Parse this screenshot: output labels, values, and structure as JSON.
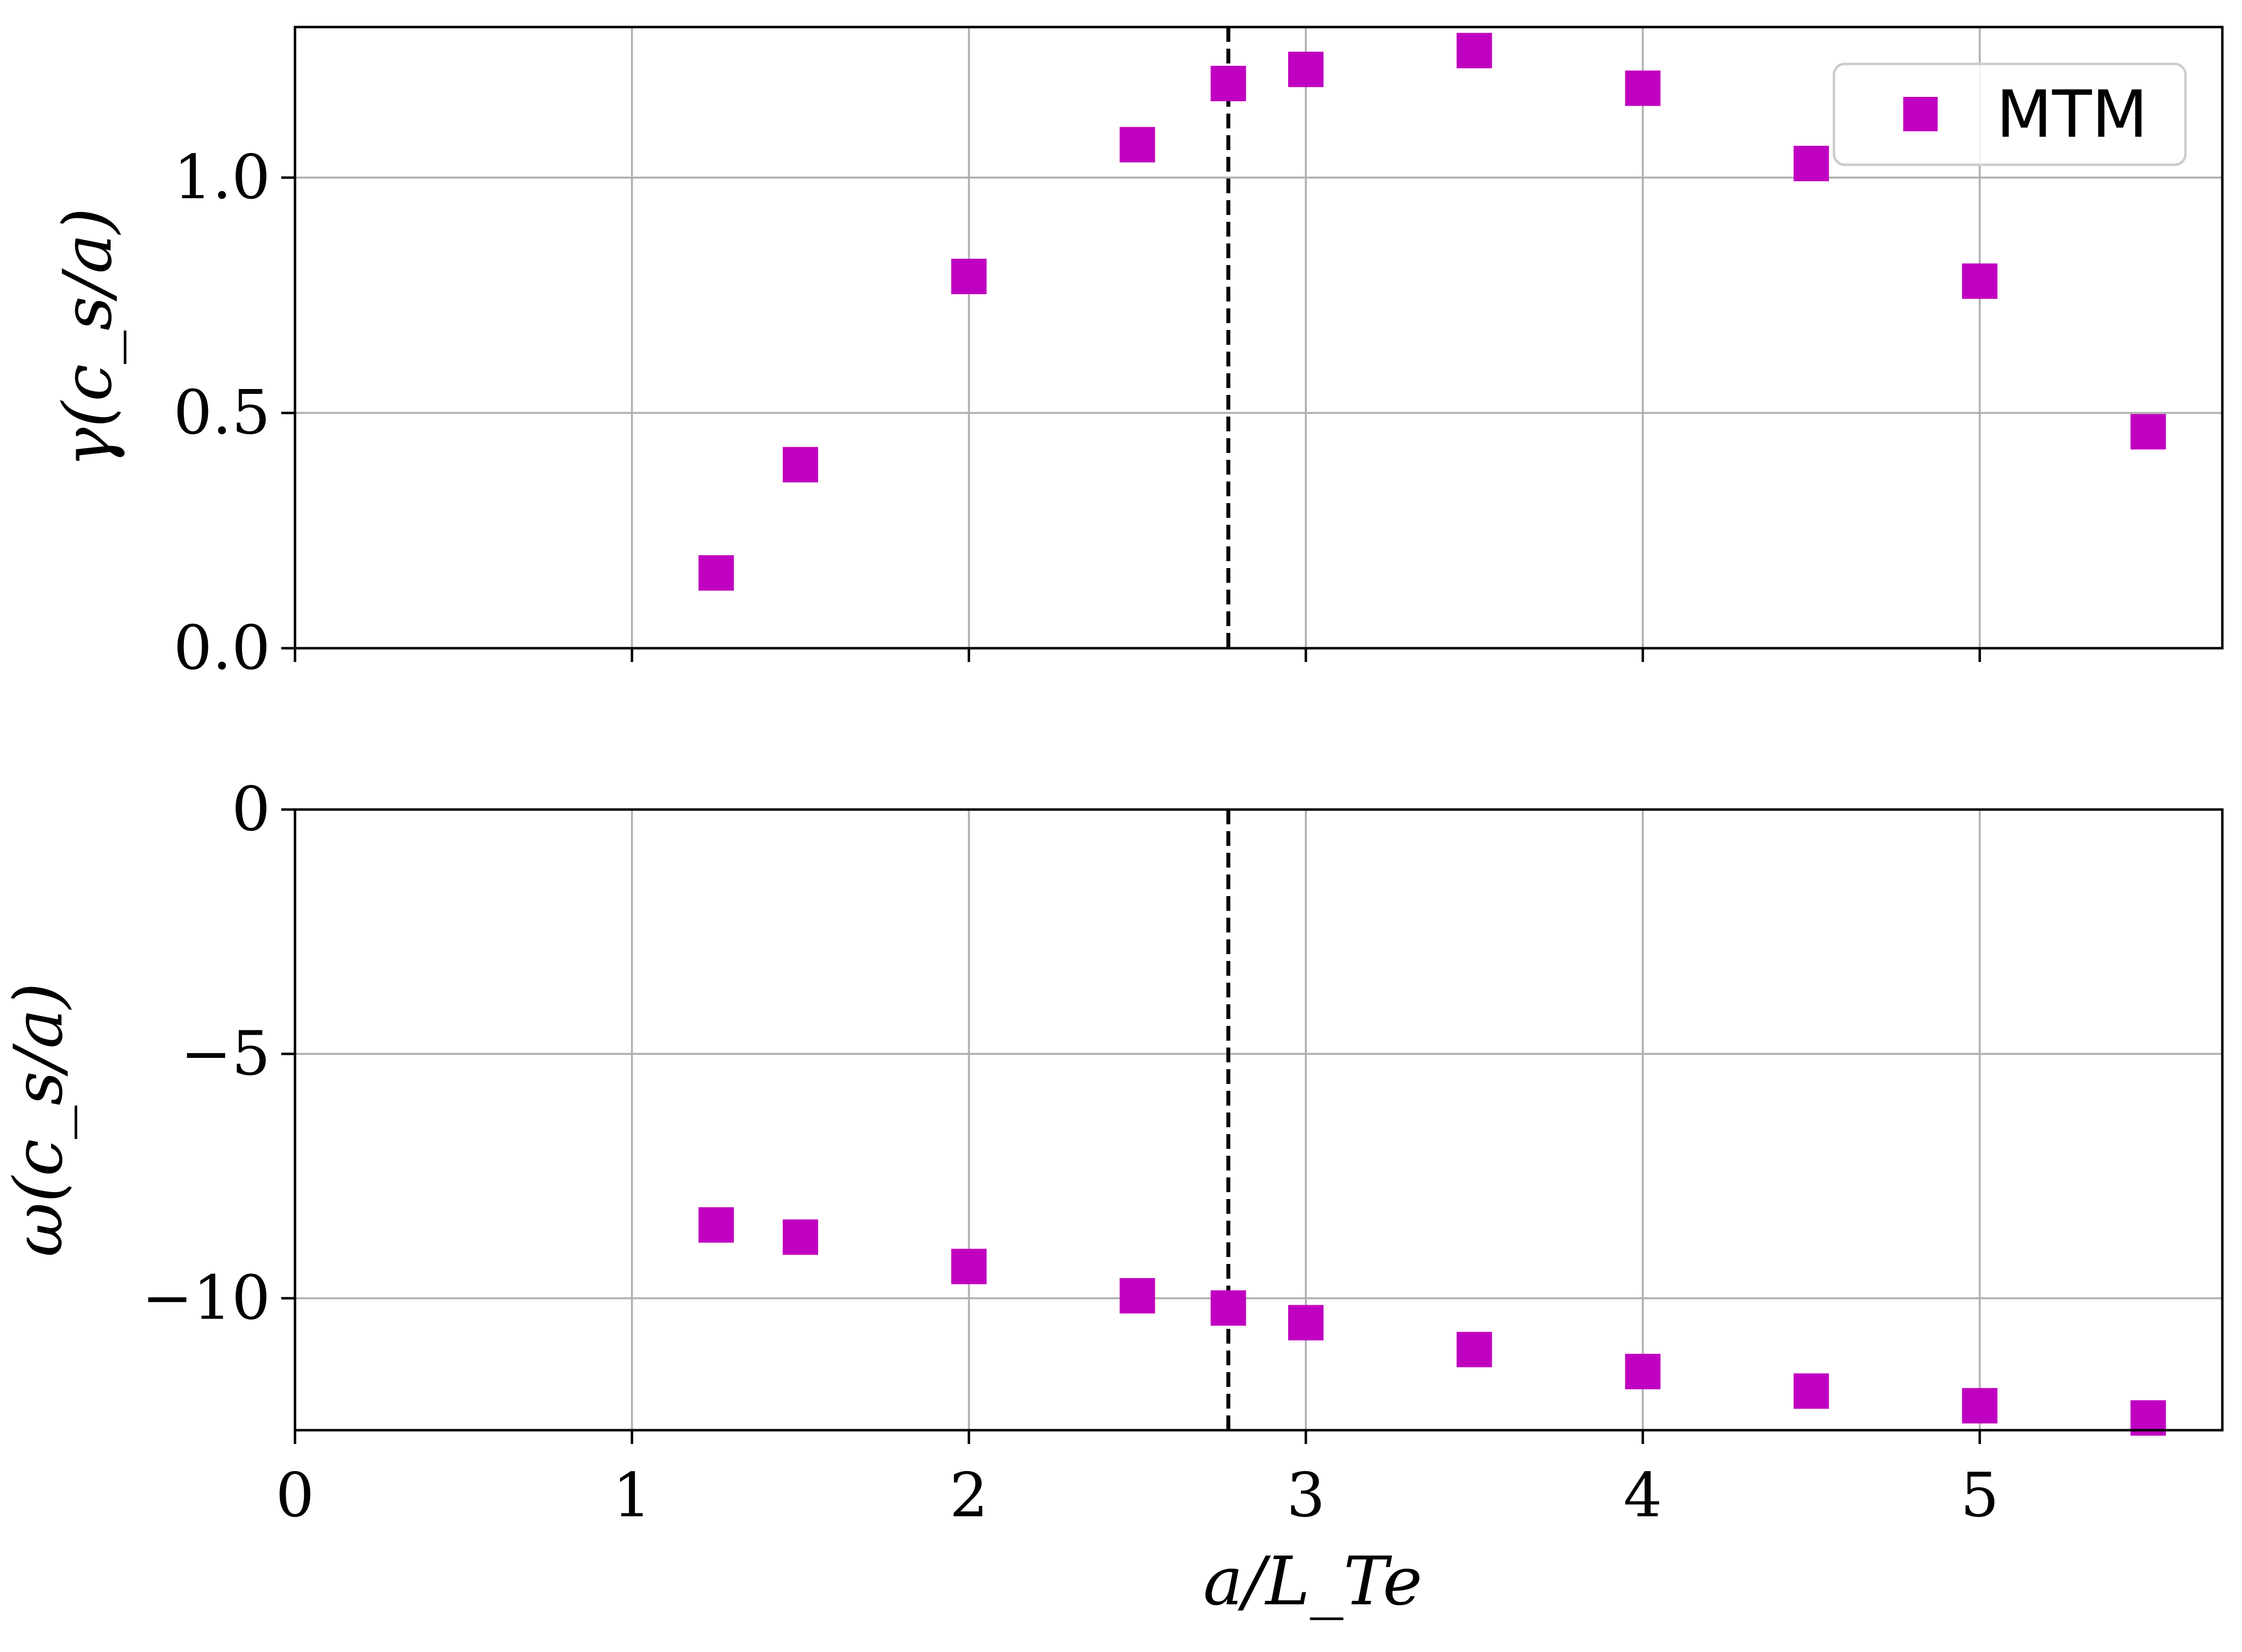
{
  "chart_data": [
    {
      "type": "scatter",
      "panel": "top",
      "ylabel": "γ(c_s/a)",
      "xlim": [
        0,
        5.72
      ],
      "ylim": [
        0,
        1.32
      ],
      "xticks": [
        0,
        1,
        2,
        3,
        4,
        5
      ],
      "yticks": [
        0.0,
        0.5,
        1.0
      ],
      "ytick_labels": [
        "0.0",
        "0.5",
        "1.0"
      ],
      "grid": true,
      "vline": 2.77,
      "legend": {
        "placement": "top-right",
        "entries": [
          "MTM"
        ]
      },
      "series": [
        {
          "name": "MTM",
          "color": "#c000c0",
          "marker": "square",
          "x": [
            1.25,
            1.5,
            2.0,
            2.5,
            2.77,
            3.0,
            3.5,
            4.0,
            4.5,
            5.0,
            5.5
          ],
          "y": [
            0.16,
            0.39,
            0.79,
            1.07,
            1.2,
            1.23,
            1.27,
            1.19,
            1.03,
            0.78,
            0.46
          ]
        }
      ]
    },
    {
      "type": "scatter",
      "panel": "bottom",
      "ylabel": "ω(c_s/a)",
      "xlabel": "a/L_Te",
      "xlim": [
        0,
        5.72
      ],
      "ylim": [
        -12.7,
        0
      ],
      "xticks": [
        0,
        1,
        2,
        3,
        4,
        5
      ],
      "xtick_labels": [
        "0",
        "1",
        "2",
        "3",
        "4",
        "5"
      ],
      "yticks": [
        -10,
        -5,
        0
      ],
      "ytick_labels": [
        "−10",
        "−5",
        "0"
      ],
      "grid": true,
      "vline": 2.77,
      "series": [
        {
          "name": "MTM",
          "color": "#c000c0",
          "marker": "square",
          "x": [
            1.25,
            1.5,
            2.0,
            2.5,
            2.77,
            3.0,
            3.5,
            4.0,
            4.5,
            5.0,
            5.5
          ],
          "y": [
            -8.5,
            -8.75,
            -9.35,
            -9.95,
            -10.2,
            -10.5,
            -11.05,
            -11.5,
            -11.9,
            -12.2,
            -12.45
          ]
        }
      ]
    }
  ]
}
